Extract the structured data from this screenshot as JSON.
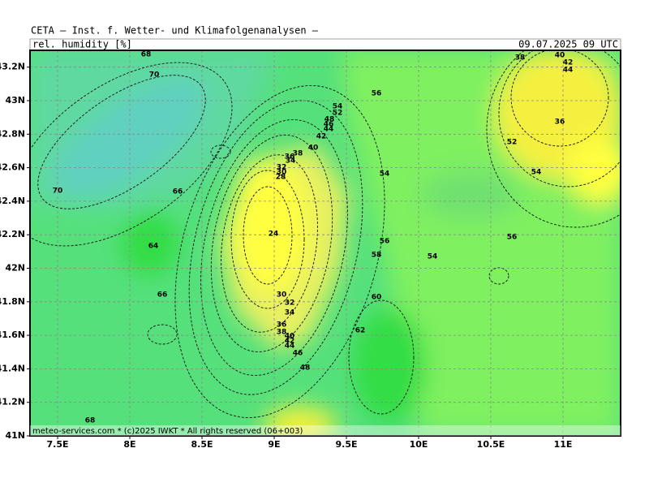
{
  "header": {
    "title": "CETA — Inst. f. Wetter- und Klimafolgenanalysen —",
    "field": "rel. humidity [%]",
    "valid": "09.07.2025 09 UTC"
  },
  "map": {
    "lat_ticks": [
      {
        "value": 43.2,
        "label": "43.2N"
      },
      {
        "value": 43,
        "label": "43N"
      },
      {
        "value": 42.8,
        "label": "42.8N"
      },
      {
        "value": 42.6,
        "label": "42.6N"
      },
      {
        "value": 42.4,
        "label": "42.4N"
      },
      {
        "value": 42.2,
        "label": "42.2N"
      },
      {
        "value": 42,
        "label": "42N"
      },
      {
        "value": 41.8,
        "label": "41.8N"
      },
      {
        "value": 41.6,
        "label": "41.6N"
      },
      {
        "value": 41.4,
        "label": "41.4N"
      },
      {
        "value": 41.2,
        "label": "41.2N"
      },
      {
        "value": 41,
        "label": "41N"
      }
    ],
    "lon_ticks": [
      {
        "value": 7.5,
        "label": "7.5E"
      },
      {
        "value": 8,
        "label": "8E"
      },
      {
        "value": 8.5,
        "label": "8.5E"
      },
      {
        "value": 9,
        "label": "9E"
      },
      {
        "value": 9.5,
        "label": "9.5E"
      },
      {
        "value": 10,
        "label": "10E"
      },
      {
        "value": 10.5,
        "label": "10.5E"
      },
      {
        "value": 11,
        "label": "11E"
      }
    ],
    "contour_labels": [
      68,
      70,
      70,
      66,
      64,
      66,
      68,
      56,
      54,
      52,
      48,
      46,
      44,
      42,
      40,
      38,
      36,
      34,
      32,
      30,
      28,
      24,
      30,
      32,
      34,
      36,
      38,
      40,
      42,
      44,
      46,
      48,
      54,
      56,
      58,
      60,
      62,
      54,
      52,
      54,
      56,
      38,
      40,
      42,
      44,
      36
    ],
    "footer": "meteo-services.com * (c)2025 IWKT * All rights reserved (06+003)"
  }
}
